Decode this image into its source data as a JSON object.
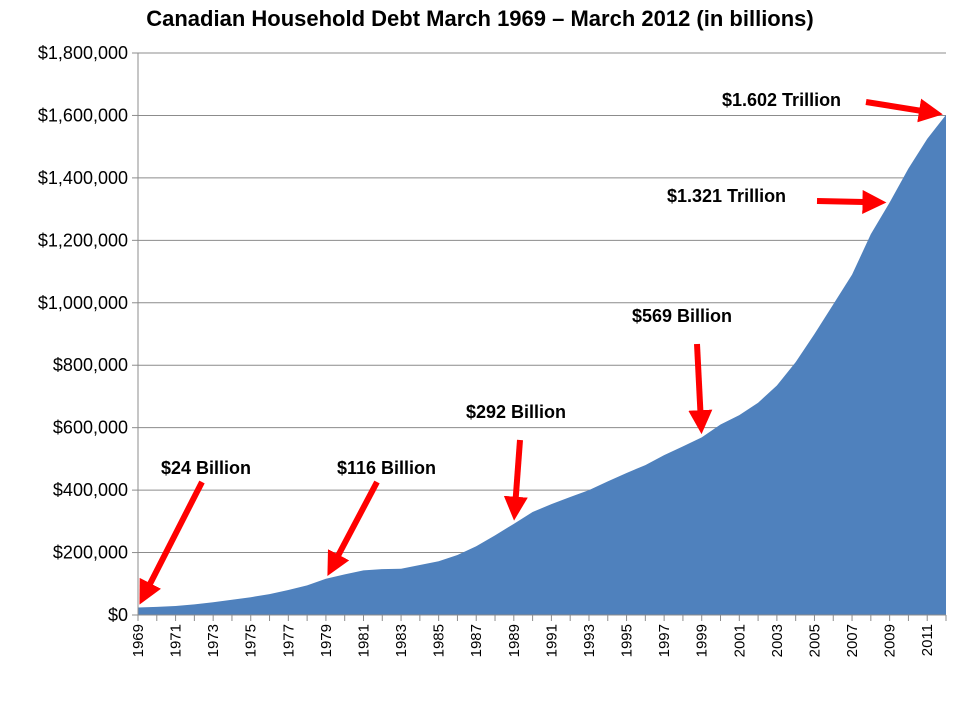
{
  "chart_data": {
    "type": "area",
    "title": "Canadian Household Debt March 1969 – March 2012 (in billions)",
    "xlabel": "",
    "ylabel": "",
    "ylim": [
      0,
      1800000
    ],
    "yticks": [
      {
        "value": 0,
        "label": "$0"
      },
      {
        "value": 200000,
        "label": "$200,000"
      },
      {
        "value": 400000,
        "label": "$400,000"
      },
      {
        "value": 600000,
        "label": "$600,000"
      },
      {
        "value": 800000,
        "label": "$800,000"
      },
      {
        "value": 1000000,
        "label": "$1,000,000"
      },
      {
        "value": 1200000,
        "label": "$1,200,000"
      },
      {
        "value": 1400000,
        "label": "$1,400,000"
      },
      {
        "value": 1600000,
        "label": "$1,600,000"
      },
      {
        "value": 1800000,
        "label": "$1,800,000"
      }
    ],
    "xtick_labels": [
      "1969",
      "1971",
      "1973",
      "1975",
      "1977",
      "1979",
      "1981",
      "1983",
      "1985",
      "1987",
      "1989",
      "1991",
      "1993",
      "1995",
      "1997",
      "1999",
      "2001",
      "2003",
      "2005",
      "2007",
      "2009",
      "2011"
    ],
    "grid": "horizontal",
    "fill_color": "#4F81BD",
    "x": [
      1969,
      1970,
      1971,
      1972,
      1973,
      1974,
      1975,
      1976,
      1977,
      1978,
      1979,
      1980,
      1981,
      1982,
      1983,
      1984,
      1985,
      1986,
      1987,
      1988,
      1989,
      1990,
      1991,
      1992,
      1993,
      1994,
      1995,
      1996,
      1997,
      1998,
      1999,
      2000,
      2001,
      2002,
      2003,
      2004,
      2005,
      2006,
      2007,
      2008,
      2009,
      2010,
      2011,
      2012
    ],
    "values": [
      24000,
      26000,
      29000,
      34000,
      41000,
      49000,
      57000,
      67000,
      80000,
      95000,
      116000,
      130000,
      143000,
      147000,
      148000,
      160000,
      172000,
      192000,
      220000,
      255000,
      292000,
      330000,
      355000,
      378000,
      400000,
      428000,
      455000,
      480000,
      512000,
      540000,
      569000,
      610000,
      640000,
      680000,
      735000,
      810000,
      900000,
      995000,
      1090000,
      1220000,
      1321000,
      1430000,
      1525000,
      1602000
    ],
    "annotations": [
      {
        "text": "$24 Billion",
        "year": 1969,
        "value": 24000
      },
      {
        "text": "$116 Billion",
        "year": 1979,
        "value": 116000
      },
      {
        "text": "$292 Billion",
        "year": 1989,
        "value": 292000
      },
      {
        "text": "$569 Billion",
        "year": 1999,
        "value": 569000
      },
      {
        "text": "$1.321 Trillion",
        "year": 2009,
        "value": 1321000
      },
      {
        "text": "$1.602 Trillion",
        "year": 2012,
        "value": 1602000
      }
    ],
    "arrow_color": "#FF0000"
  }
}
